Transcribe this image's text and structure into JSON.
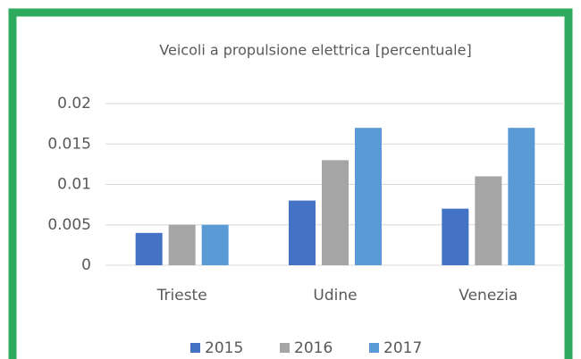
{
  "chart_data": {
    "type": "bar",
    "title": "Veicoli a propulsione elettrica [percentuale]",
    "categories": [
      "Trieste",
      "Udine",
      "Venezia"
    ],
    "series": [
      {
        "name": "2015",
        "color": "#4472c4",
        "values": [
          0.004,
          0.008,
          0.007
        ]
      },
      {
        "name": "2016",
        "color": "#a5a5a5",
        "values": [
          0.005,
          0.013,
          0.011
        ]
      },
      {
        "name": "2017",
        "color": "#5b9bd5",
        "values": [
          0.005,
          0.017,
          0.017
        ]
      }
    ],
    "ylim": [
      0,
      0.02
    ],
    "yticks": [
      0,
      0.005,
      0.01,
      0.015,
      0.02
    ],
    "grid": true,
    "legend": "bottom"
  }
}
